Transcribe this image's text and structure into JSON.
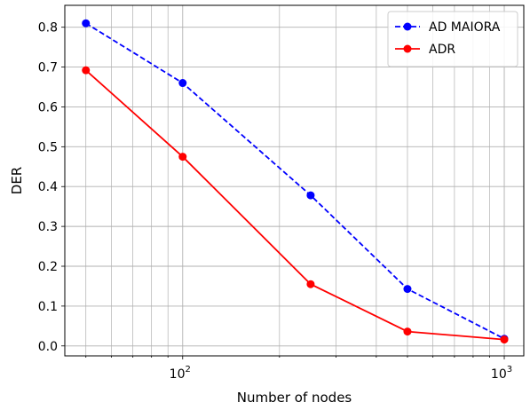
{
  "chart_data": {
    "type": "line",
    "xlabel": "Number of nodes",
    "ylabel": "DER",
    "x_scale": "log",
    "xlim": [
      43,
      1150
    ],
    "ylim": [
      -0.025,
      0.855
    ],
    "x_ticks": [
      {
        "value": 100,
        "base": "10",
        "exponent": "2"
      },
      {
        "value": 1000,
        "base": "10",
        "exponent": "3"
      }
    ],
    "y_ticks": [
      "0.0",
      "0.1",
      "0.2",
      "0.3",
      "0.4",
      "0.5",
      "0.6",
      "0.7",
      "0.8"
    ],
    "grid": true,
    "legend_position": "top-right",
    "series": [
      {
        "name": "AD MAIORA",
        "color": "#0000ff",
        "line_style": "dashed",
        "marker": "circle",
        "points": [
          {
            "x": 50,
            "y": 0.81
          },
          {
            "x": 100,
            "y": 0.66
          },
          {
            "x": 250,
            "y": 0.378
          },
          {
            "x": 500,
            "y": 0.143
          },
          {
            "x": 1000,
            "y": 0.018
          }
        ]
      },
      {
        "name": "ADR",
        "color": "#ff0000",
        "line_style": "solid",
        "marker": "circle",
        "points": [
          {
            "x": 50,
            "y": 0.692
          },
          {
            "x": 100,
            "y": 0.475
          },
          {
            "x": 250,
            "y": 0.155
          },
          {
            "x": 500,
            "y": 0.036
          },
          {
            "x": 1000,
            "y": 0.016
          }
        ]
      }
    ]
  }
}
